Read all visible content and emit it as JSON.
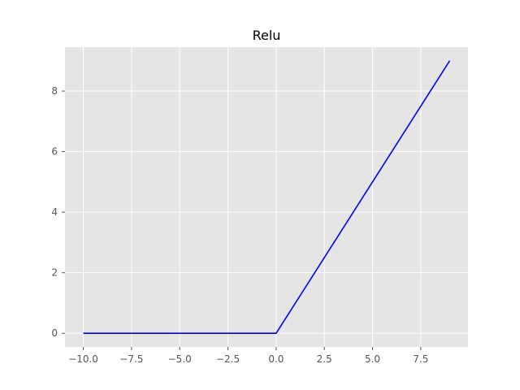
{
  "chart_data": {
    "type": "line",
    "title": "Relu",
    "xlabel": "",
    "ylabel": "",
    "xlim": [
      -10.95,
      9.95
    ],
    "ylim": [
      -0.45,
      9.45
    ],
    "grid": true,
    "x_ticks": [
      -10.0,
      -7.5,
      -5.0,
      -2.5,
      0.0,
      2.5,
      5.0,
      7.5
    ],
    "x_tick_labels": [
      "−10.0",
      "−7.5",
      "−5.0",
      "−2.5",
      "0.0",
      "2.5",
      "5.0",
      "7.5"
    ],
    "y_ticks": [
      0,
      2,
      4,
      6,
      8
    ],
    "y_tick_labels": [
      "0",
      "2",
      "4",
      "6",
      "8"
    ],
    "series": [
      {
        "color": "#0000ff",
        "x": [
          -10,
          0,
          9
        ],
        "y": [
          0,
          0,
          9
        ]
      }
    ]
  },
  "colors": {
    "plot_background": "#e5e5e5",
    "grid": "#ffffff",
    "tick": "#555555"
  }
}
